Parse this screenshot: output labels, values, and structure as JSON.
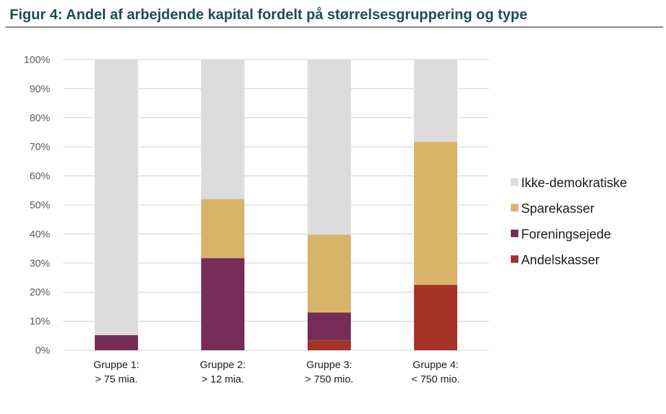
{
  "title": "Figur 4: Andel af arbejdende kapital fordelt på størrelsesgruppering og type",
  "chart_data": {
    "type": "bar",
    "stacked": true,
    "categories": [
      [
        "Gruppe 1:",
        "> 75 mia."
      ],
      [
        "Gruppe 2:",
        "> 12 mia."
      ],
      [
        "Gruppe 3:",
        "> 750 mio."
      ],
      [
        "Gruppe 4:",
        "< 750 mio."
      ]
    ],
    "series": [
      {
        "name": "Andelskasser",
        "color": "#a33227",
        "values": [
          0,
          0,
          3.5,
          22.5
        ]
      },
      {
        "name": "Foreningsejede",
        "color": "#772c58",
        "values": [
          5.2,
          31.7,
          9.5,
          0
        ]
      },
      {
        "name": "Sparekasser",
        "color": "#d8b46a",
        "values": [
          0,
          20.3,
          26.8,
          49.2
        ]
      },
      {
        "name": "Ikke-demokratiske",
        "color": "#dcdcdc",
        "values": [
          94.8,
          48,
          60.2,
          28.3
        ]
      }
    ],
    "ylim": [
      0,
      100
    ],
    "yticks": [
      "0%",
      "10%",
      "20%",
      "30%",
      "40%",
      "50%",
      "60%",
      "70%",
      "80%",
      "90%",
      "100%"
    ],
    "legend_order": [
      "Ikke-demokratiske",
      "Sparekasser",
      "Foreningsejede",
      "Andelskasser"
    ],
    "legend_position": "right",
    "grid": true
  }
}
